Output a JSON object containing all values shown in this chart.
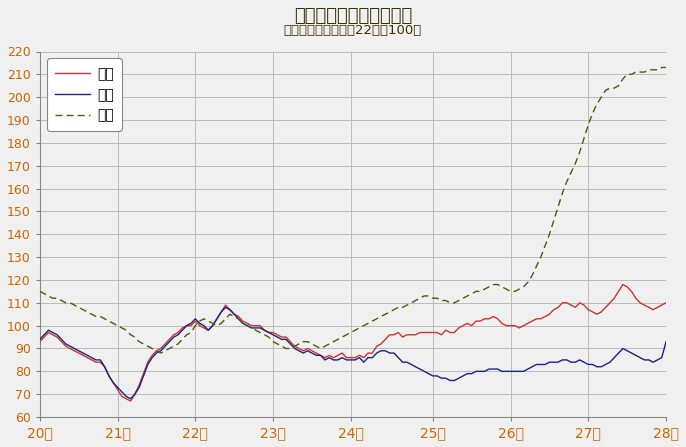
{
  "title": "鳥取県鉱工業指数の推移",
  "subtitle": "（季節調整済、平成22年＝100）",
  "title_color": "#3d3000",
  "tick_label_color": "#cc6600",
  "xlabel": "",
  "ylabel": "",
  "ylim": [
    60,
    220
  ],
  "yticks": [
    60,
    70,
    80,
    90,
    100,
    110,
    120,
    130,
    140,
    150,
    160,
    170,
    180,
    190,
    200,
    210,
    220
  ],
  "xtick_labels": [
    "20年",
    "21年",
    "22年",
    "23年",
    "24年",
    "25年",
    "26年",
    "27年",
    "28年"
  ],
  "figure_bg_color": "#f0f0f0",
  "plot_bg_color": "#f0f0f0",
  "legend_labels": [
    "生産",
    "出荷",
    "在庫"
  ],
  "seisan_color": "#cc3333",
  "shukka_color": "#1a237e",
  "zaiko_color": "#4a5e00",
  "seisan": [
    93,
    95,
    97,
    96,
    95,
    93,
    91,
    90,
    89,
    88,
    87,
    86,
    85,
    84,
    84,
    82,
    78,
    75,
    72,
    69,
    68,
    67,
    70,
    74,
    79,
    84,
    87,
    89,
    90,
    92,
    94,
    96,
    97,
    99,
    100,
    100,
    102,
    100,
    99,
    98,
    100,
    103,
    106,
    109,
    107,
    105,
    104,
    102,
    101,
    100,
    100,
    100,
    98,
    97,
    97,
    96,
    95,
    95,
    93,
    91,
    90,
    89,
    90,
    89,
    88,
    87,
    86,
    87,
    86,
    87,
    88,
    86,
    86,
    86,
    87,
    86,
    88,
    88,
    91,
    92,
    94,
    96,
    96,
    97,
    95,
    96,
    96,
    96,
    97,
    97,
    97,
    97,
    97,
    96,
    98,
    97,
    97,
    99,
    100,
    101,
    100,
    102,
    102,
    103,
    103,
    104,
    103,
    101,
    100,
    100,
    100,
    99,
    100,
    101,
    102,
    103,
    103,
    104,
    105,
    107,
    108,
    110,
    110,
    109,
    108,
    110,
    109,
    107,
    106,
    105,
    106,
    108,
    110,
    112,
    115,
    118,
    117,
    115,
    112,
    110,
    109,
    108,
    107,
    108,
    109,
    110
  ],
  "shukka": [
    94,
    96,
    98,
    97,
    96,
    94,
    92,
    91,
    90,
    89,
    88,
    87,
    86,
    85,
    85,
    82,
    78,
    75,
    73,
    71,
    69,
    68,
    70,
    73,
    78,
    83,
    86,
    88,
    89,
    91,
    93,
    95,
    96,
    98,
    100,
    101,
    103,
    101,
    100,
    98,
    100,
    103,
    106,
    108,
    107,
    105,
    103,
    101,
    100,
    99,
    99,
    99,
    98,
    97,
    96,
    95,
    94,
    94,
    92,
    90,
    89,
    88,
    89,
    88,
    87,
    87,
    85,
    86,
    85,
    85,
    86,
    85,
    85,
    85,
    86,
    84,
    86,
    86,
    88,
    89,
    89,
    88,
    88,
    86,
    84,
    84,
    83,
    82,
    81,
    80,
    79,
    78,
    78,
    77,
    77,
    76,
    76,
    77,
    78,
    79,
    79,
    80,
    80,
    80,
    81,
    81,
    81,
    80,
    80,
    80,
    80,
    80,
    80,
    81,
    82,
    83,
    83,
    83,
    84,
    84,
    84,
    85,
    85,
    84,
    84,
    85,
    84,
    83,
    83,
    82,
    82,
    83,
    84,
    86,
    88,
    90,
    89,
    88,
    87,
    86,
    85,
    85,
    84,
    85,
    86,
    93
  ],
  "zaiko": [
    115,
    114,
    113,
    112,
    112,
    111,
    110,
    110,
    109,
    108,
    107,
    106,
    105,
    104,
    104,
    103,
    102,
    101,
    100,
    99,
    98,
    96,
    95,
    93,
    92,
    91,
    90,
    89,
    88,
    89,
    90,
    91,
    92,
    94,
    96,
    97,
    100,
    102,
    103,
    102,
    101,
    100,
    101,
    103,
    105,
    104,
    103,
    101,
    100,
    99,
    98,
    97,
    96,
    95,
    93,
    92,
    91,
    90,
    90,
    91,
    92,
    93,
    93,
    92,
    91,
    90,
    91,
    92,
    93,
    94,
    95,
    96,
    97,
    98,
    99,
    100,
    101,
    102,
    103,
    104,
    105,
    106,
    107,
    108,
    108,
    109,
    110,
    111,
    112,
    113,
    113,
    112,
    112,
    111,
    111,
    110,
    110,
    111,
    112,
    113,
    114,
    115,
    115,
    116,
    117,
    118,
    118,
    117,
    116,
    115,
    115,
    116,
    117,
    119,
    122,
    126,
    130,
    135,
    140,
    146,
    152,
    158,
    163,
    167,
    171,
    176,
    182,
    188,
    193,
    197,
    200,
    203,
    204,
    204,
    205,
    208,
    210,
    210,
    211,
    211,
    211,
    212,
    212,
    212,
    213,
    213
  ]
}
